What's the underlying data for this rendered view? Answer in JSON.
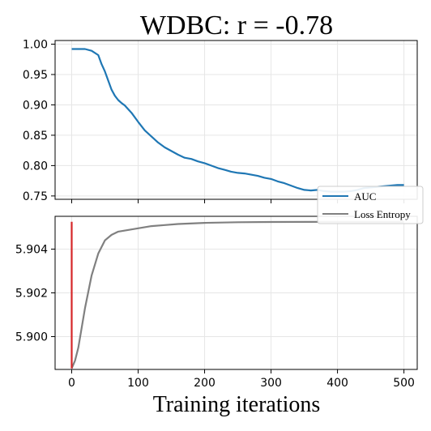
{
  "chart_data": {
    "type": "line",
    "title": "WDBC: r = -0.78",
    "xlabel": "Training iterations",
    "xlim": [
      -25,
      520
    ],
    "x_ticks": [
      "0",
      "100",
      "200",
      "300",
      "400",
      "500"
    ],
    "grid": true,
    "legend": {
      "placement": "right, between panels",
      "entries": [
        "AUC",
        "Loss Entropy"
      ]
    },
    "panels": [
      {
        "name": "top",
        "ylim": [
          0.7445,
          1.006
        ],
        "y_ticks": [
          "1.00",
          "0.95",
          "0.90",
          "0.85",
          "0.80",
          "0.75"
        ],
        "series": [
          {
            "name": "AUC",
            "color": "#1f77b4",
            "points": [
              [
                0,
                0.992
              ],
              [
                10,
                0.992
              ],
              [
                20,
                0.992
              ],
              [
                30,
                0.989
              ],
              [
                40,
                0.982
              ],
              [
                45,
                0.967
              ],
              [
                50,
                0.955
              ],
              [
                55,
                0.94
              ],
              [
                60,
                0.925
              ],
              [
                65,
                0.915
              ],
              [
                70,
                0.908
              ],
              [
                75,
                0.903
              ],
              [
                80,
                0.899
              ],
              [
                90,
                0.887
              ],
              [
                100,
                0.872
              ],
              [
                110,
                0.858
              ],
              [
                120,
                0.848
              ],
              [
                130,
                0.838
              ],
              [
                140,
                0.83
              ],
              [
                150,
                0.824
              ],
              [
                160,
                0.818
              ],
              [
                170,
                0.813
              ],
              [
                180,
                0.811
              ],
              [
                190,
                0.807
              ],
              [
                200,
                0.804
              ],
              [
                210,
                0.8
              ],
              [
                220,
                0.796
              ],
              [
                230,
                0.793
              ],
              [
                240,
                0.79
              ],
              [
                250,
                0.788
              ],
              [
                260,
                0.787
              ],
              [
                270,
                0.785
              ],
              [
                280,
                0.783
              ],
              [
                290,
                0.78
              ],
              [
                300,
                0.778
              ],
              [
                310,
                0.774
              ],
              [
                320,
                0.771
              ],
              [
                330,
                0.767
              ],
              [
                340,
                0.763
              ],
              [
                350,
                0.76
              ],
              [
                360,
                0.759
              ],
              [
                370,
                0.76
              ],
              [
                380,
                0.758
              ],
              [
                390,
                0.757
              ],
              [
                400,
                0.757
              ],
              [
                410,
                0.757
              ],
              [
                420,
                0.758
              ],
              [
                430,
                0.76
              ],
              [
                440,
                0.763
              ],
              [
                450,
                0.764
              ],
              [
                460,
                0.765
              ],
              [
                470,
                0.766
              ],
              [
                480,
                0.767
              ],
              [
                490,
                0.768
              ],
              [
                500,
                0.768
              ]
            ]
          }
        ]
      },
      {
        "name": "bottom",
        "ylim": [
          5.8985,
          5.9055
        ],
        "y_ticks": [
          "5.904",
          "5.902",
          "5.900"
        ],
        "series": [
          {
            "name": "Loss Entropy",
            "color": "#808080",
            "points": [
              [
                0,
                5.89855
              ],
              [
                5,
                5.8989
              ],
              [
                10,
                5.8995
              ],
              [
                15,
                5.9004
              ],
              [
                20,
                5.9013
              ],
              [
                30,
                5.9028
              ],
              [
                40,
                5.9038
              ],
              [
                50,
                5.9044
              ],
              [
                60,
                5.90465
              ],
              [
                70,
                5.9048
              ],
              [
                80,
                5.90485
              ],
              [
                100,
                5.90495
              ],
              [
                120,
                5.90505
              ],
              [
                140,
                5.9051
              ],
              [
                160,
                5.90515
              ],
              [
                200,
                5.9052
              ],
              [
                250,
                5.90523
              ],
              [
                300,
                5.90524
              ],
              [
                400,
                5.90525
              ],
              [
                500,
                5.90525
              ]
            ]
          },
          {
            "name": "",
            "color": "#d62728",
            "points": [
              [
                0,
                5.90525
              ],
              [
                0,
                5.89855
              ]
            ]
          }
        ]
      }
    ]
  }
}
